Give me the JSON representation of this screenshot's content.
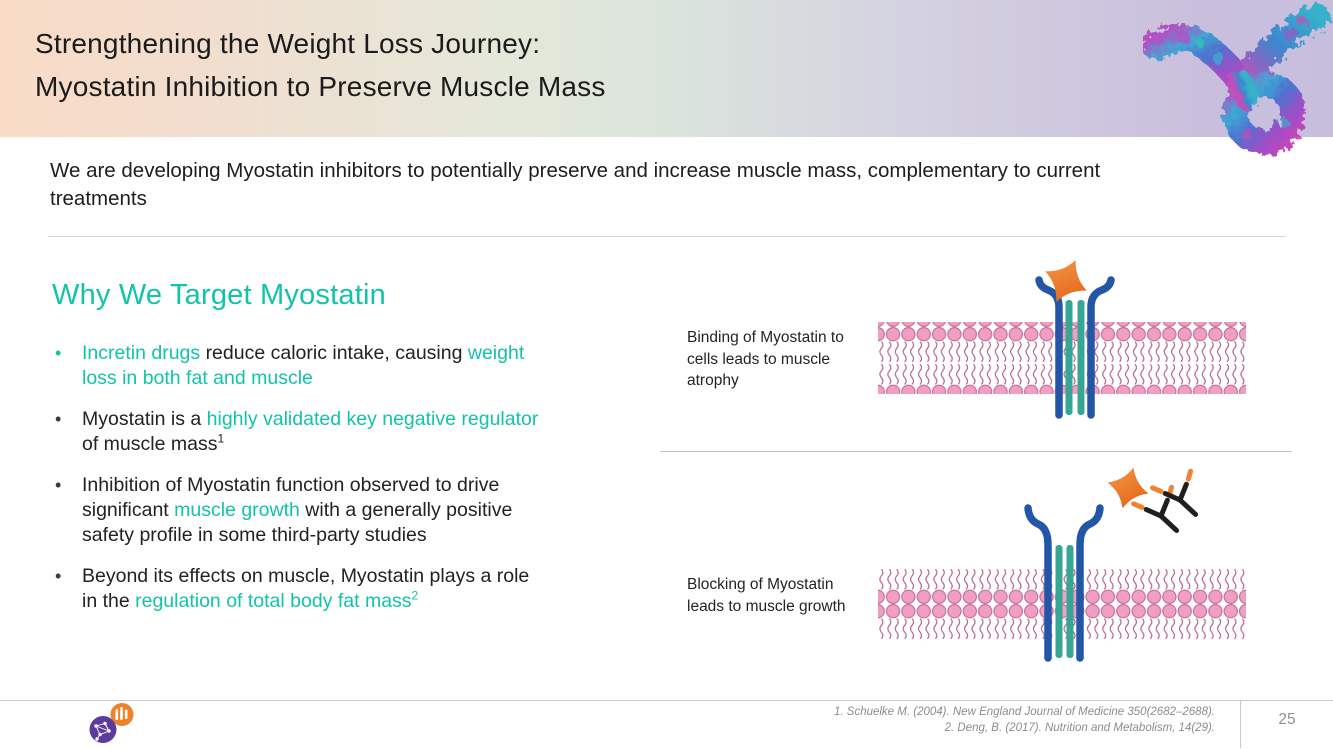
{
  "header": {
    "title_line1": "Strengthening the Weight Loss Journey:",
    "title_line2": "Myostatin Inhibition to Preserve Muscle Mass"
  },
  "intro": "We are developing Myostatin inhibitors to potentially preserve and increase muscle mass, complementary to current treatments",
  "section": {
    "heading": "Why We Target Myostatin"
  },
  "bullets": {
    "marker_glyph": "•",
    "items": [
      {
        "marker_color": "teal",
        "segments": [
          {
            "text": "Incretin drugs ",
            "color": "teal"
          },
          {
            "text": "reduce caloric intake, causing ",
            "color": "dark"
          },
          {
            "text": "weight loss in both fat and muscle",
            "color": "teal"
          }
        ]
      },
      {
        "marker_color": "dark",
        "segments": [
          {
            "text": "Myostatin is a ",
            "color": "dark"
          },
          {
            "text": "highly validated key negative regulator",
            "color": "teal"
          },
          {
            "text": " of muscle mass",
            "color": "dark"
          },
          {
            "text": "1",
            "color": "dark",
            "sup": true
          }
        ]
      },
      {
        "marker_color": "dark",
        "segments": [
          {
            "text": "Inhibition of Myostatin function observed to drive significant ",
            "color": "dark"
          },
          {
            "text": "muscle growth",
            "color": "teal"
          },
          {
            "text": " with a generally positive safety profile in some third-party studies",
            "color": "dark"
          }
        ]
      },
      {
        "marker_color": "dark",
        "segments": [
          {
            "text": "Beyond its effects on muscle, Myostatin plays a role in the ",
            "color": "dark"
          },
          {
            "text": "regulation of total body fat mass",
            "color": "teal"
          },
          {
            "text": "2",
            "color": "teal",
            "sup": true
          }
        ]
      }
    ]
  },
  "diagrams": [
    {
      "caption": "Binding of Myostatin to cells leads to muscle atrophy"
    },
    {
      "caption": "Blocking of Myostatin leads to muscle growth"
    }
  ],
  "footer": {
    "references": [
      "1. Schuelke M. (2004). New England Journal of Medicine 350(2682–2688).",
      "2. Deng, B. (2017). Nutrition and Metabolism, 14(29)."
    ],
    "page_number": "25"
  },
  "colors": {
    "accent_teal": "#13c3a9",
    "receptor_blue": "#2456a8",
    "receptor_teal": "#37a795",
    "membrane_pink": "#f09fc3",
    "membrane_outline": "#c4709d",
    "myostatin_orange": "#e8661c",
    "antibody_black": "#1f1f1f",
    "antibody_tip_orange": "#ef8532",
    "footer_gray": "#8c8c8c"
  }
}
